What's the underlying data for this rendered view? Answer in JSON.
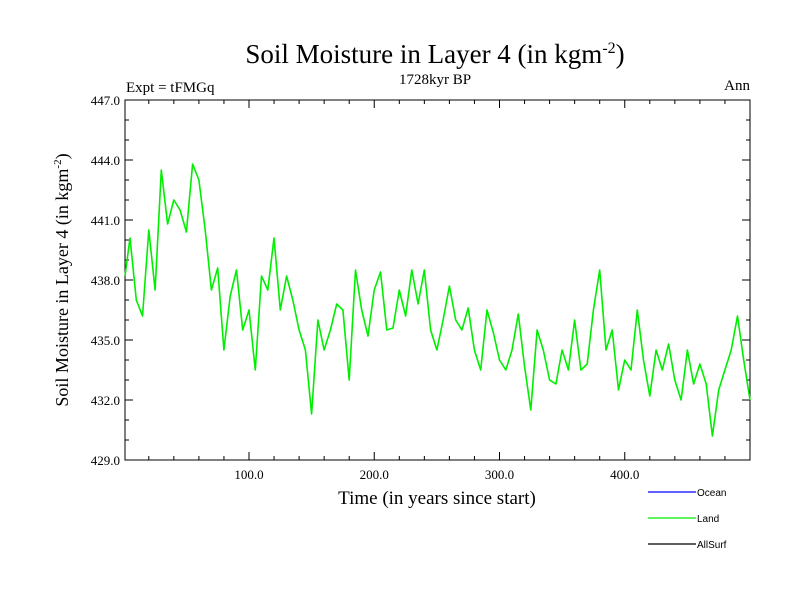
{
  "chart_data": {
    "type": "line",
    "title": "Soil Moisture in Layer 4 (in kgm",
    "title_sup": "-2",
    "title_close": ")",
    "subtitle": "1728kyr BP",
    "left_label": "Expt = tFMGq",
    "right_label": "Ann",
    "xlabel": "Time (in years since start)",
    "ylabel": "Soil Moisture in Layer 4 (in kgm",
    "ylabel_sup": "-2",
    "ylabel_close": ")",
    "xlim": [
      1,
      500
    ],
    "ylim": [
      429,
      447
    ],
    "x_ticks": [
      100,
      200,
      300,
      400
    ],
    "x_tick_labels": [
      "100.0",
      "200.0",
      "300.0",
      "400.0"
    ],
    "y_ticks": [
      429,
      432,
      435,
      438,
      441,
      444,
      447
    ],
    "y_tick_labels": [
      "429.0",
      "432.0",
      "435.0",
      "438.0",
      "441.0",
      "444.0",
      "447.0"
    ],
    "legend": [
      {
        "name": "Ocean",
        "color": "#0000ff"
      },
      {
        "name": "Land",
        "color": "#00ee00"
      },
      {
        "name": "AllSurf",
        "color": "#000000"
      }
    ],
    "series": [
      {
        "name": "Land",
        "color": "#00ee00",
        "x": [
          1,
          5,
          10,
          15,
          20,
          25,
          30,
          35,
          40,
          45,
          50,
          55,
          60,
          65,
          70,
          75,
          80,
          85,
          90,
          95,
          100,
          105,
          110,
          115,
          120,
          125,
          130,
          135,
          140,
          145,
          150,
          155,
          160,
          165,
          170,
          175,
          180,
          185,
          190,
          195,
          200,
          205,
          210,
          215,
          220,
          225,
          230,
          235,
          240,
          245,
          250,
          255,
          260,
          265,
          270,
          275,
          280,
          285,
          290,
          295,
          300,
          305,
          310,
          315,
          320,
          325,
          330,
          335,
          340,
          345,
          350,
          355,
          360,
          365,
          370,
          375,
          380,
          385,
          390,
          395,
          400,
          405,
          410,
          415,
          420,
          425,
          430,
          435,
          440,
          445,
          450,
          455,
          460,
          465,
          470,
          475,
          480,
          485,
          490,
          495,
          500
        ],
        "values": [
          438.2,
          440.1,
          437.0,
          436.2,
          440.5,
          437.5,
          443.5,
          440.8,
          442.0,
          441.5,
          440.4,
          443.8,
          443.0,
          440.5,
          437.5,
          438.6,
          434.5,
          437.2,
          438.5,
          435.5,
          436.5,
          433.5,
          438.2,
          437.5,
          440.1,
          436.5,
          438.2,
          437.0,
          435.5,
          434.5,
          431.3,
          436.0,
          434.5,
          435.5,
          436.8,
          436.5,
          433.0,
          438.5,
          436.5,
          435.2,
          437.5,
          438.4,
          435.5,
          435.6,
          437.5,
          436.2,
          438.5,
          436.8,
          438.5,
          435.5,
          434.5,
          436.0,
          437.7,
          436.0,
          435.5,
          436.6,
          434.5,
          433.5,
          436.5,
          435.4,
          434.0,
          433.5,
          434.5,
          436.3,
          433.7,
          431.5,
          435.5,
          434.5,
          433.0,
          432.8,
          434.5,
          433.5,
          436.0,
          433.5,
          433.8,
          436.5,
          438.5,
          434.5,
          435.5,
          432.5,
          434.0,
          433.5,
          436.5,
          434.0,
          432.2,
          434.5,
          433.5,
          434.8,
          433.0,
          432.0,
          434.5,
          432.8,
          433.8,
          432.8,
          430.2,
          432.5,
          433.5,
          434.5,
          436.2,
          434.0,
          432.0
        ]
      }
    ]
  }
}
